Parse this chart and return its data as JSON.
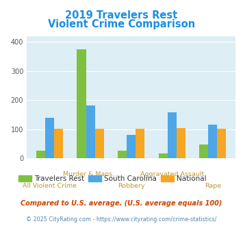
{
  "title_line1": "2019 Travelers Rest",
  "title_line2": "Violent Crime Comparison",
  "title_color": "#1a8fe0",
  "categories": [
    "All Violent Crime",
    "Murder & Mans...",
    "Robbery",
    "Aggravated Assault",
    "Rape"
  ],
  "travelers_rest": [
    25,
    375,
    25,
    17,
    47
  ],
  "south_carolina": [
    138,
    182,
    79,
    158,
    116
  ],
  "national": [
    102,
    102,
    102,
    103,
    102
  ],
  "travelers_rest_color": "#7dc142",
  "south_carolina_color": "#4da6e8",
  "national_color": "#f5a623",
  "outer_bg_color": "#ffffff",
  "plot_bg_color": "#ddeef4",
  "ylim": [
    0,
    420
  ],
  "yticks": [
    0,
    100,
    200,
    300,
    400
  ],
  "footnote1": "Compared to U.S. average. (U.S. average equals 100)",
  "footnote2": "© 2025 CityRating.com - https://www.cityrating.com/crime-statistics/",
  "footnote1_color": "#cc4400",
  "footnote2_color": "#5588aa",
  "legend_labels": [
    "Travelers Rest",
    "South Carolina",
    "National"
  ],
  "xlabel_color": "#bb9933",
  "top_labels": [
    "",
    "Murder & Mans...",
    "",
    "Aggravated Assault",
    ""
  ],
  "bot_labels": [
    "All Violent Crime",
    "",
    "Robbery",
    "",
    "Rape"
  ]
}
